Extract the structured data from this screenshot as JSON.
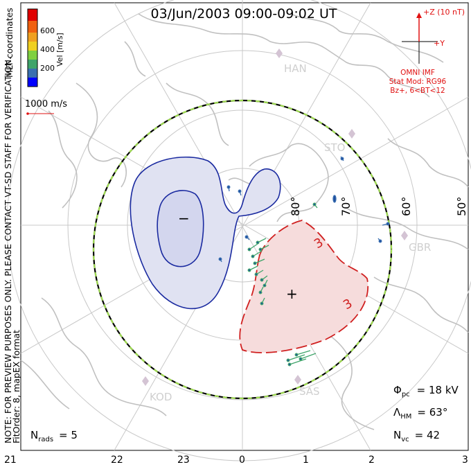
{
  "title": "03/Jun/2003 09:00-09:02 UT",
  "colorbar": {
    "label": "Vel [m/s]",
    "ticks": [
      "600",
      "400",
      "200"
    ],
    "colors": [
      "#0000ff",
      "#3a6fb0",
      "#3fa46a",
      "#7fd040",
      "#f0d020",
      "#f0a020",
      "#f06010",
      "#e00000"
    ]
  },
  "coord_label": "MLT coordinates",
  "scale_vector_label": "1000 m/s",
  "side_note": "NOTE: FOR PREVIEW PURPOSES ONLY. PLEASE CONTACT VT-SD STAFF FOR VERIFICATION.",
  "fit_order": "FitOrder: 8, mapEX format",
  "imf": {
    "z_label": "+Z (10 nT)",
    "y_label": "+Y",
    "source": "OMNI IMF",
    "model": "Stat Mod: RG96",
    "condition": "Bz+, 6<BT<12"
  },
  "latitude_labels": [
    "80°",
    "70°",
    "60°",
    "50°"
  ],
  "stations": [
    "HAN",
    "STO",
    "GBR",
    "KOD",
    "SAS"
  ],
  "cell_markers": {
    "negative": "−",
    "positive": "+"
  },
  "contour_label": "3",
  "stats": {
    "phi_symbol": "Φ",
    "phi_sub": "pc",
    "phi_value": "= 18 kV",
    "lambda_symbol": "Λ",
    "lambda_sub": "HM",
    "lambda_value": "= 63°",
    "n_symbol": "N",
    "nvc_sub": "vc",
    "nvc_value": "= 42",
    "nrads_sub": "rads",
    "nrads_value": "= 5"
  },
  "mlt_axis": [
    "21",
    "22",
    "23",
    "0",
    "1",
    "2",
    "3"
  ],
  "colors": {
    "negative_cell_fill": "#e0e2f2",
    "negative_cell_line": "#1a2aa0",
    "positive_cell_fill": "#f6dcdc",
    "positive_cell_line": "#d02020",
    "hmb_green": "#9fdc50",
    "imf_red": "#e01010",
    "grid": "#c8c8c8",
    "coast": "#c0c0c0"
  }
}
